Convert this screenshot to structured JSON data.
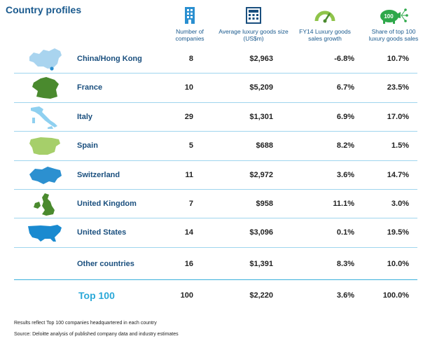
{
  "title": "Country profiles",
  "headers": {
    "companies": "Number of companies",
    "avg_size": "Average luxury goods size (US$m)",
    "growth": "FY14 Luxury goods sales growth",
    "share": "Share of top 100 luxury goods sales",
    "share_badge": "100"
  },
  "colors": {
    "title": "#1a5a8e",
    "china": "#a9d4ef",
    "france": "#4a8a2e",
    "italy": "#8fd0f0",
    "spain": "#a6cf6a",
    "switzerland": "#2c90d0",
    "uk": "#4a8a2e",
    "us": "#1a8ad0",
    "total_label": "#2aa8d8",
    "divider": "#9fd5ee"
  },
  "rows": [
    {
      "country": "China/Hong Kong",
      "icon": "china-map-icon",
      "count": "8",
      "avg": "$2,963",
      "growth": "-6.8%",
      "share": "10.7%"
    },
    {
      "country": "France",
      "icon": "france-map-icon",
      "count": "10",
      "avg": "$5,209",
      "growth": "6.7%",
      "share": "23.5%"
    },
    {
      "country": "Italy",
      "icon": "italy-map-icon",
      "count": "29",
      "avg": "$1,301",
      "growth": "6.9%",
      "share": "17.0%"
    },
    {
      "country": "Spain",
      "icon": "spain-map-icon",
      "count": "5",
      "avg": "$688",
      "growth": "8.2%",
      "share": "1.5%"
    },
    {
      "country": "Switzerland",
      "icon": "switzerland-map-icon",
      "count": "11",
      "avg": "$2,972",
      "growth": "3.6%",
      "share": "14.7%"
    },
    {
      "country": "United Kingdom",
      "icon": "uk-map-icon",
      "count": "7",
      "avg": "$958",
      "growth": "11.1%",
      "share": "3.0%"
    },
    {
      "country": "United States",
      "icon": "us-map-icon",
      "count": "14",
      "avg": "$3,096",
      "growth": "0.1%",
      "share": "19.5%"
    },
    {
      "country": "Other countries",
      "icon": "",
      "count": "16",
      "avg": "$1,391",
      "growth": "8.3%",
      "share": "10.0%"
    }
  ],
  "total": {
    "country": "Top 100",
    "count": "100",
    "avg": "$2,220",
    "growth": "3.6%",
    "share": "100.0%"
  },
  "notes": {
    "note1": "Results reflect Top 100 companies headquartered in each country",
    "note2": "Source: Deloitte analysis of published company data and industry estimates"
  }
}
